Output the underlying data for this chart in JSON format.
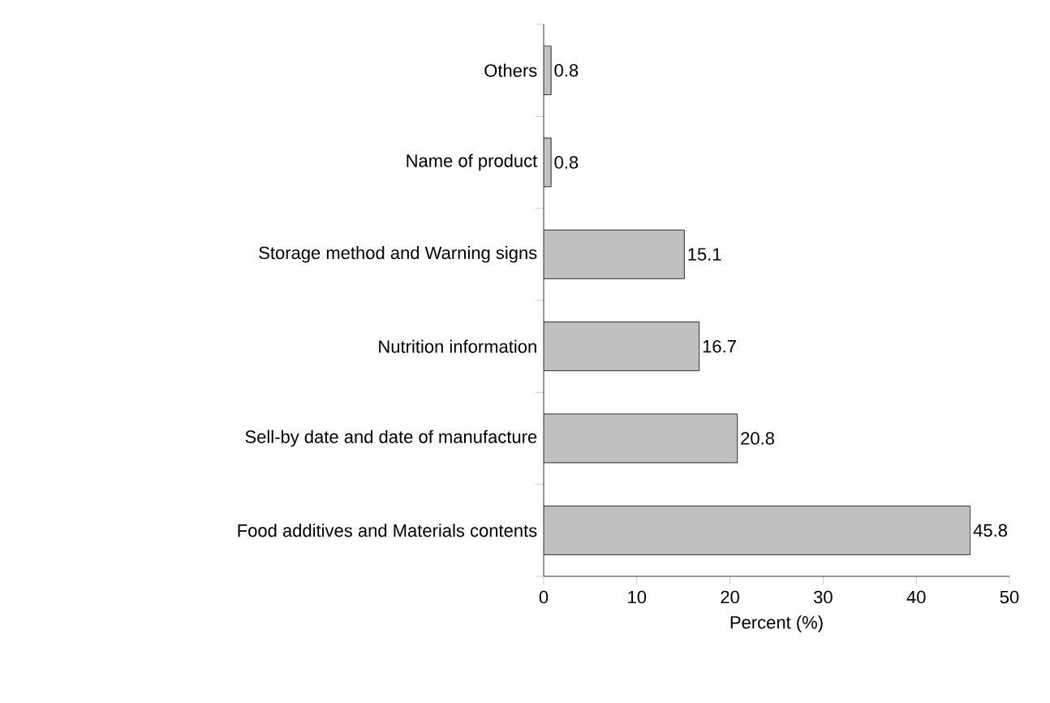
{
  "chart_data": {
    "type": "bar",
    "orientation": "horizontal",
    "xlabel": "Percent (%)",
    "categories": [
      "Others",
      "Name of product",
      "Storage method and Warning signs",
      "Nutrition information",
      "Sell-by date and date of manufacture",
      "Food additives and Materials contents"
    ],
    "values": [
      0.8,
      0.8,
      15.1,
      16.7,
      20.8,
      45.8
    ],
    "color": "#c0c0c0",
    "xlim": [
      0,
      50
    ],
    "xticks": [
      0,
      10,
      20,
      30,
      40,
      50
    ],
    "data_labels": true,
    "grid": false,
    "legend": false
  }
}
